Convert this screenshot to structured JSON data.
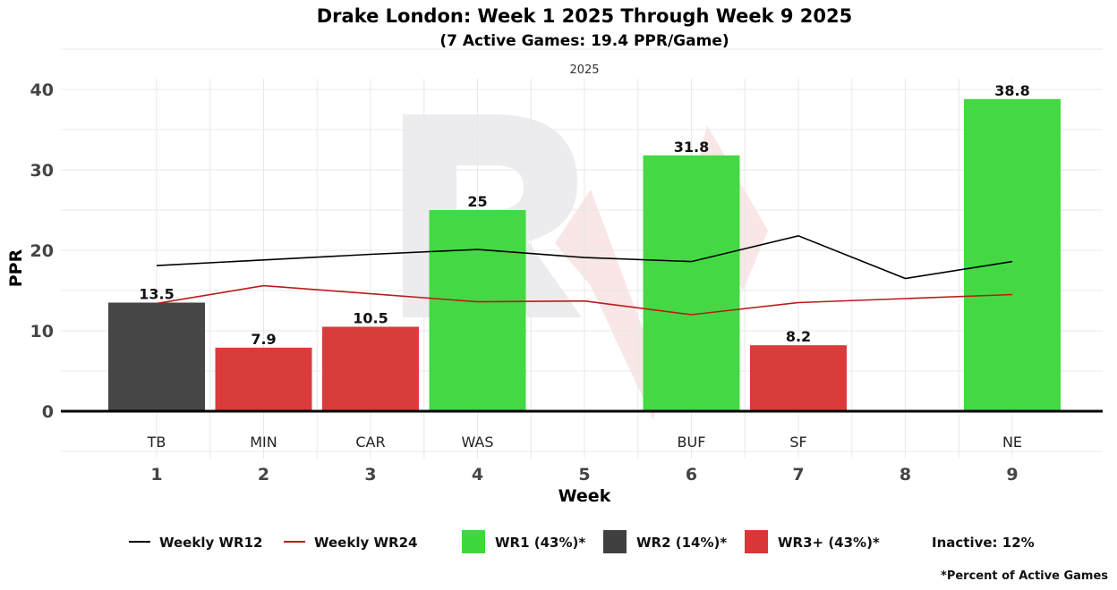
{
  "chart_data": {
    "type": "bar",
    "title": "Drake London: Week 1 2025 Through Week 9 2025",
    "subtitle": "(7 Active Games: 19.4 PPR/Game)",
    "facet_label": "2025",
    "xlabel": "Week",
    "ylabel": "PPR",
    "ylim": [
      0,
      40
    ],
    "yticks": [
      0,
      10,
      20,
      30,
      40
    ],
    "weeks": [
      1,
      2,
      3,
      4,
      5,
      6,
      7,
      8,
      9
    ],
    "opponents": [
      "TB",
      "MIN",
      "CAR",
      "WAS",
      "",
      "BUF",
      "SF",
      "",
      "NE"
    ],
    "bars": [
      {
        "week": 1,
        "value": 13.5,
        "label": "13.5",
        "tier": "WR2"
      },
      {
        "week": 2,
        "value": 7.9,
        "label": "7.9",
        "tier": "WR3+"
      },
      {
        "week": 3,
        "value": 10.5,
        "label": "10.5",
        "tier": "WR3+"
      },
      {
        "week": 4,
        "value": 25,
        "label": "25",
        "tier": "WR1"
      },
      {
        "week": 6,
        "value": 31.8,
        "label": "31.8",
        "tier": "WR1"
      },
      {
        "week": 7,
        "value": 8.2,
        "label": "8.2",
        "tier": "WR3+"
      },
      {
        "week": 9,
        "value": 38.8,
        "label": "38.8",
        "tier": "WR1"
      }
    ],
    "series": [
      {
        "name": "Weekly WR12",
        "color": "#000000",
        "values": [
          18.1,
          18.8,
          19.5,
          20.1,
          19.1,
          18.6,
          21.8,
          16.5,
          18.6
        ]
      },
      {
        "name": "Weekly WR24",
        "color": "#bb1a1a",
        "values": [
          13.4,
          15.6,
          14.6,
          13.6,
          13.7,
          12.0,
          13.5,
          14.0,
          14.5
        ]
      }
    ],
    "tier_colors": {
      "WR1": "#3ed83e",
      "WR2": "#404040",
      "WR3+": "#d93636"
    },
    "legend": {
      "lines": [
        {
          "label": "Weekly WR12",
          "color": "#000000"
        },
        {
          "label": "Weekly WR24",
          "color": "#bb1a1a"
        }
      ],
      "boxes": [
        {
          "label": "WR1 (43%)*",
          "color": "#3ed83e"
        },
        {
          "label": "WR2 (14%)*",
          "color": "#404040"
        },
        {
          "label": "WR3+ (43%)*",
          "color": "#d93636"
        }
      ],
      "inactive": "Inactive: 12%",
      "position": "bottom"
    },
    "footnote": "*Percent of Active Games"
  }
}
